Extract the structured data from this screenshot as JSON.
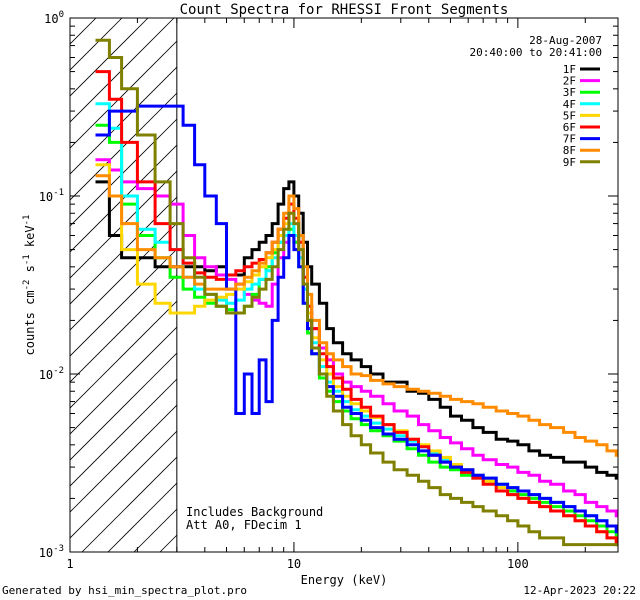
{
  "chart_data": {
    "type": "line",
    "title": "Count Spectra for RHESSI Front Segments",
    "xlabel": "Energy (keV)",
    "ylabel_html": "counts cm<tspan dy='-5' font-size='9'>-2</tspan><tspan dy='5'> s</tspan><tspan dy='-5' font-size='9'>-1</tspan><tspan dy='5'> keV</tspan><tspan dy='-5' font-size='9'>-1</tspan>",
    "ylabel_text": "counts cm-2 s-1 keV-1",
    "x_scale": "log",
    "y_scale": "log",
    "xlim": [
      1,
      280
    ],
    "ylim": [
      0.001,
      1
    ],
    "x_ticks": [
      {
        "v": 1,
        "label": "1"
      },
      {
        "v": 10,
        "label": "10"
      },
      {
        "v": 100,
        "label": "100"
      }
    ],
    "y_ticks": [
      {
        "v": 1,
        "label": "10",
        "exp": "0"
      },
      {
        "v": 0.1,
        "label": "10",
        "exp": "-1"
      },
      {
        "v": 0.01,
        "label": "10",
        "exp": "-2"
      },
      {
        "v": 0.001,
        "label": "10",
        "exp": "-3"
      }
    ],
    "date": "28-Aug-2007",
    "time_range": "20:40:00 to 20:41:00",
    "annotations": [
      "Includes Background",
      "Att A0, FDecim 1"
    ],
    "hatched_region_max_energy": 3,
    "legend_position": "top-right",
    "series": [
      {
        "name": "1F",
        "color": "#000000",
        "x": [
          1.3,
          1.5,
          1.7,
          2.0,
          2.4,
          2.8,
          3.2,
          3.6,
          4.0,
          4.5,
          5.0,
          5.5,
          6.0,
          6.5,
          7.0,
          7.5,
          8.0,
          8.5,
          9.0,
          9.5,
          10.0,
          10.5,
          11.0,
          11.5,
          12.0,
          13.0,
          14.0,
          15.0,
          16.5,
          18.0,
          20.0,
          22.0,
          25.0,
          28.0,
          32.0,
          36.0,
          40.0,
          45.0,
          50.0,
          56.0,
          63.0,
          70.0,
          80.0,
          90.0,
          100.0,
          112.0,
          125.0,
          140.0,
          160.0,
          180.0,
          200.0,
          225.0,
          250.0,
          275.0
        ],
        "y": [
          0.12,
          0.06,
          0.045,
          0.045,
          0.04,
          0.04,
          0.04,
          0.04,
          0.038,
          0.04,
          0.036,
          0.036,
          0.045,
          0.05,
          0.055,
          0.06,
          0.07,
          0.09,
          0.11,
          0.12,
          0.1,
          0.08,
          0.055,
          0.04,
          0.032,
          0.025,
          0.018,
          0.015,
          0.013,
          0.012,
          0.011,
          0.01,
          0.009,
          0.009,
          0.008,
          0.0078,
          0.0072,
          0.0065,
          0.0058,
          0.0055,
          0.005,
          0.0047,
          0.0043,
          0.0042,
          0.004,
          0.0037,
          0.0035,
          0.0034,
          0.0032,
          0.0032,
          0.003,
          0.0028,
          0.0027,
          0.0026
        ]
      },
      {
        "name": "2F",
        "color": "#ff00ff",
        "x": [
          1.3,
          1.5,
          1.7,
          2.0,
          2.4,
          2.8,
          3.2,
          3.6,
          4.0,
          4.5,
          5.0,
          5.5,
          6.0,
          6.5,
          7.0,
          7.5,
          8.0,
          8.5,
          9.0,
          9.5,
          10.0,
          10.5,
          11.0,
          11.5,
          12.0,
          13.0,
          14.0,
          15.0,
          16.5,
          18.0,
          20.0,
          22.0,
          25.0,
          28.0,
          32.0,
          36.0,
          40.0,
          45.0,
          50.0,
          56.0,
          63.0,
          70.0,
          80.0,
          90.0,
          100.0,
          112.0,
          125.0,
          140.0,
          160.0,
          180.0,
          200.0,
          225.0,
          250.0,
          275.0
        ],
        "y": [
          0.16,
          0.14,
          0.12,
          0.11,
          0.1,
          0.09,
          0.06,
          0.045,
          0.04,
          0.036,
          0.034,
          0.032,
          0.028,
          0.026,
          0.025,
          0.024,
          0.032,
          0.045,
          0.055,
          0.06,
          0.055,
          0.045,
          0.03,
          0.022,
          0.018,
          0.014,
          0.012,
          0.01,
          0.009,
          0.0085,
          0.008,
          0.0075,
          0.0068,
          0.0062,
          0.0058,
          0.0052,
          0.0048,
          0.0044,
          0.0041,
          0.0038,
          0.0035,
          0.0033,
          0.0031,
          0.003,
          0.0028,
          0.0027,
          0.0025,
          0.0024,
          0.0022,
          0.0021,
          0.0019,
          0.0018,
          0.0017,
          0.0016
        ]
      },
      {
        "name": "3F",
        "color": "#00ff00",
        "x": [
          1.3,
          1.5,
          1.7,
          2.0,
          2.4,
          2.8,
          3.2,
          3.6,
          4.0,
          4.5,
          5.0,
          5.5,
          6.0,
          6.5,
          7.0,
          7.5,
          8.0,
          8.5,
          9.0,
          9.5,
          10.0,
          10.5,
          11.0,
          11.5,
          12.0,
          13.0,
          14.0,
          15.0,
          16.5,
          18.0,
          20.0,
          22.0,
          25.0,
          28.0,
          32.0,
          36.0,
          40.0,
          45.0,
          50.0,
          56.0,
          63.0,
          70.0,
          80.0,
          90.0,
          100.0,
          112.0,
          125.0,
          140.0,
          160.0,
          180.0,
          200.0,
          225.0,
          250.0,
          275.0
        ],
        "y": [
          0.25,
          0.2,
          0.09,
          0.06,
          0.045,
          0.035,
          0.03,
          0.027,
          0.025,
          0.024,
          0.023,
          0.022,
          0.024,
          0.028,
          0.034,
          0.04,
          0.048,
          0.055,
          0.06,
          0.065,
          0.055,
          0.04,
          0.025,
          0.017,
          0.013,
          0.0095,
          0.008,
          0.007,
          0.0062,
          0.0056,
          0.0052,
          0.0048,
          0.0045,
          0.0042,
          0.0038,
          0.0035,
          0.0032,
          0.003,
          0.0029,
          0.0027,
          0.0026,
          0.0025,
          0.0024,
          0.0022,
          0.0021,
          0.002,
          0.0019,
          0.0018,
          0.0017,
          0.0016,
          0.0015,
          0.0014,
          0.0013,
          0.0012
        ]
      },
      {
        "name": "4F",
        "color": "#00ffff",
        "x": [
          1.3,
          1.5,
          1.7,
          2.0,
          2.4,
          2.8,
          3.2,
          3.6,
          4.0,
          4.5,
          5.0,
          5.5,
          6.0,
          6.5,
          7.0,
          7.5,
          8.0,
          8.5,
          9.0,
          9.5,
          10.0,
          10.5,
          11.0,
          11.5,
          12.0,
          13.0,
          14.0,
          15.0,
          16.5,
          18.0,
          20.0,
          22.0,
          25.0,
          28.0,
          32.0,
          36.0,
          40.0,
          45.0,
          50.0,
          56.0,
          63.0,
          70.0,
          80.0,
          90.0,
          100.0,
          112.0,
          125.0,
          140.0,
          160.0,
          180.0,
          200.0,
          225.0,
          250.0,
          275.0
        ],
        "y": [
          0.33,
          0.24,
          0.1,
          0.065,
          0.055,
          0.05,
          0.035,
          0.03,
          0.028,
          0.026,
          0.025,
          0.026,
          0.03,
          0.032,
          0.034,
          0.038,
          0.045,
          0.055,
          0.06,
          0.07,
          0.06,
          0.045,
          0.03,
          0.02,
          0.015,
          0.011,
          0.009,
          0.008,
          0.007,
          0.0063,
          0.0058,
          0.0053,
          0.0049,
          0.0045,
          0.0042,
          0.0039,
          0.0036,
          0.0033,
          0.0031,
          0.0029,
          0.0027,
          0.0026,
          0.0024,
          0.0023,
          0.0022,
          0.0021,
          0.002,
          0.0019,
          0.0018,
          0.0017,
          0.0016,
          0.0015,
          0.0014,
          0.0013
        ]
      },
      {
        "name": "5F",
        "color": "#ffd700",
        "x": [
          1.3,
          1.5,
          1.7,
          2.0,
          2.4,
          2.8,
          3.2,
          3.6,
          4.0,
          4.5,
          5.0,
          5.5,
          6.0,
          6.5,
          7.0,
          7.5,
          8.0,
          8.5,
          9.0,
          9.5,
          10.0,
          10.5,
          11.0,
          11.5,
          12.0,
          13.0,
          14.0,
          15.0,
          16.5,
          18.0,
          20.0,
          22.0,
          25.0,
          28.0,
          32.0,
          36.0,
          40.0,
          45.0,
          50.0,
          56.0,
          63.0,
          70.0,
          80.0,
          90.0,
          100.0,
          112.0,
          125.0,
          140.0,
          160.0,
          180.0,
          200.0,
          225.0,
          250.0,
          275.0
        ],
        "y": [
          0.15,
          0.1,
          0.05,
          0.032,
          0.025,
          0.022,
          0.022,
          0.024,
          0.026,
          0.027,
          0.028,
          0.03,
          0.033,
          0.036,
          0.04,
          0.045,
          0.05,
          0.06,
          0.07,
          0.08,
          0.07,
          0.05,
          0.032,
          0.022,
          0.016,
          0.012,
          0.01,
          0.0085,
          0.0075,
          0.0068,
          0.0062,
          0.0057,
          0.0052,
          0.0048,
          0.0043,
          0.004,
          0.0037,
          0.0034,
          0.0031,
          0.0029,
          0.0027,
          0.0025,
          0.0023,
          0.0021,
          0.002,
          0.0019,
          0.0018,
          0.0017,
          0.0016,
          0.0015,
          0.0014,
          0.0013,
          0.0012,
          0.0011
        ]
      },
      {
        "name": "6F",
        "color": "#ff0000",
        "x": [
          1.3,
          1.5,
          1.7,
          2.0,
          2.4,
          2.8,
          3.2,
          3.6,
          4.0,
          4.5,
          5.0,
          5.5,
          6.0,
          6.5,
          7.0,
          7.5,
          8.0,
          8.5,
          9.0,
          9.5,
          10.0,
          10.5,
          11.0,
          11.5,
          12.0,
          13.0,
          14.0,
          15.0,
          16.5,
          18.0,
          20.0,
          22.0,
          25.0,
          28.0,
          32.0,
          36.0,
          40.0,
          45.0,
          50.0,
          56.0,
          63.0,
          70.0,
          80.0,
          90.0,
          100.0,
          112.0,
          125.0,
          140.0,
          160.0,
          180.0,
          200.0,
          225.0,
          250.0,
          275.0
        ],
        "y": [
          0.5,
          0.35,
          0.2,
          0.12,
          0.07,
          0.05,
          0.042,
          0.037,
          0.035,
          0.034,
          0.036,
          0.038,
          0.04,
          0.042,
          0.044,
          0.048,
          0.055,
          0.065,
          0.075,
          0.09,
          0.075,
          0.055,
          0.035,
          0.024,
          0.018,
          0.013,
          0.011,
          0.0095,
          0.0082,
          0.0072,
          0.0065,
          0.0058,
          0.0052,
          0.0047,
          0.0043,
          0.0039,
          0.0035,
          0.0032,
          0.003,
          0.0028,
          0.0026,
          0.0024,
          0.0022,
          0.0021,
          0.002,
          0.0019,
          0.0018,
          0.0017,
          0.0016,
          0.0015,
          0.0014,
          0.0013,
          0.0012,
          0.0011
        ]
      },
      {
        "name": "7F",
        "color": "#0000ff",
        "x": [
          1.3,
          1.5,
          1.7,
          2.0,
          2.4,
          2.8,
          3.2,
          3.6,
          4.0,
          4.5,
          5.0,
          5.5,
          6.0,
          6.5,
          7.0,
          7.5,
          8.0,
          8.5,
          9.0,
          9.5,
          10.0,
          10.5,
          11.0,
          11.5,
          12.0,
          13.0,
          14.0,
          15.0,
          16.5,
          18.0,
          20.0,
          22.0,
          25.0,
          28.0,
          32.0,
          36.0,
          40.0,
          45.0,
          50.0,
          56.0,
          63.0,
          70.0,
          80.0,
          90.0,
          100.0,
          112.0,
          125.0,
          140.0,
          160.0,
          180.0,
          200.0,
          225.0,
          250.0,
          275.0
        ],
        "y": [
          0.22,
          0.3,
          0.3,
          0.32,
          0.32,
          0.32,
          0.25,
          0.15,
          0.1,
          0.07,
          0.03,
          0.006,
          0.01,
          0.006,
          0.012,
          0.007,
          0.02,
          0.035,
          0.045,
          0.06,
          0.05,
          0.04,
          0.025,
          0.018,
          0.013,
          0.01,
          0.0085,
          0.0075,
          0.0065,
          0.006,
          0.0055,
          0.005,
          0.0046,
          0.0043,
          0.004,
          0.0037,
          0.0035,
          0.0032,
          0.003,
          0.0029,
          0.0027,
          0.0026,
          0.0024,
          0.0023,
          0.0022,
          0.0021,
          0.002,
          0.0019,
          0.0018,
          0.0017,
          0.0016,
          0.0015,
          0.0014,
          0.0013
        ]
      },
      {
        "name": "8F",
        "color": "#ff8c00",
        "x": [
          1.3,
          1.5,
          1.7,
          2.0,
          2.4,
          2.8,
          3.2,
          3.6,
          4.0,
          4.5,
          5.0,
          5.5,
          6.0,
          6.5,
          7.0,
          7.5,
          8.0,
          8.5,
          9.0,
          9.5,
          10.0,
          10.5,
          11.0,
          11.5,
          12.0,
          13.0,
          14.0,
          15.0,
          16.5,
          18.0,
          20.0,
          22.0,
          25.0,
          28.0,
          32.0,
          36.0,
          40.0,
          45.0,
          50.0,
          56.0,
          63.0,
          70.0,
          80.0,
          90.0,
          100.0,
          112.0,
          125.0,
          140.0,
          160.0,
          180.0,
          200.0,
          225.0,
          250.0,
          275.0
        ],
        "y": [
          0.13,
          0.1,
          0.07,
          0.05,
          0.045,
          0.04,
          0.035,
          0.032,
          0.03,
          0.03,
          0.03,
          0.032,
          0.035,
          0.038,
          0.042,
          0.048,
          0.055,
          0.065,
          0.08,
          0.1,
          0.085,
          0.06,
          0.04,
          0.028,
          0.02,
          0.015,
          0.013,
          0.012,
          0.011,
          0.01,
          0.0098,
          0.0092,
          0.0088,
          0.0085,
          0.0082,
          0.008,
          0.0078,
          0.0075,
          0.0072,
          0.007,
          0.0068,
          0.0065,
          0.0062,
          0.006,
          0.0058,
          0.0055,
          0.0052,
          0.005,
          0.0047,
          0.0044,
          0.0042,
          0.004,
          0.0037,
          0.0035
        ]
      },
      {
        "name": "9F",
        "color": "#808000",
        "x": [
          1.3,
          1.5,
          1.7,
          2.0,
          2.4,
          2.8,
          3.2,
          3.6,
          4.0,
          4.5,
          5.0,
          5.5,
          6.0,
          6.5,
          7.0,
          7.5,
          8.0,
          8.5,
          9.0,
          9.5,
          10.0,
          10.5,
          11.0,
          11.5,
          12.0,
          13.0,
          14.0,
          15.0,
          16.5,
          18.0,
          20.0,
          22.0,
          25.0,
          28.0,
          32.0,
          36.0,
          40.0,
          45.0,
          50.0,
          56.0,
          63.0,
          70.0,
          80.0,
          90.0,
          100.0,
          112.0,
          125.0,
          140.0,
          160.0,
          180.0,
          200.0,
          225.0,
          250.0,
          275.0
        ],
        "y": [
          0.75,
          0.6,
          0.4,
          0.22,
          0.12,
          0.07,
          0.045,
          0.035,
          0.028,
          0.024,
          0.022,
          0.022,
          0.024,
          0.027,
          0.03,
          0.034,
          0.04,
          0.05,
          0.065,
          0.08,
          0.07,
          0.05,
          0.032,
          0.02,
          0.014,
          0.01,
          0.0075,
          0.0062,
          0.0052,
          0.0045,
          0.004,
          0.0036,
          0.0032,
          0.0029,
          0.0027,
          0.0025,
          0.0023,
          0.0021,
          0.002,
          0.0019,
          0.0018,
          0.0017,
          0.0016,
          0.0015,
          0.0014,
          0.0013,
          0.0012,
          0.0012,
          0.0011,
          0.0011,
          0.0011,
          0.0011,
          0.0011,
          0.0011
        ]
      }
    ]
  },
  "footer": {
    "left": "Generated by hsi_min_spectra_plot.pro",
    "right": "12-Apr-2023 20:22"
  }
}
